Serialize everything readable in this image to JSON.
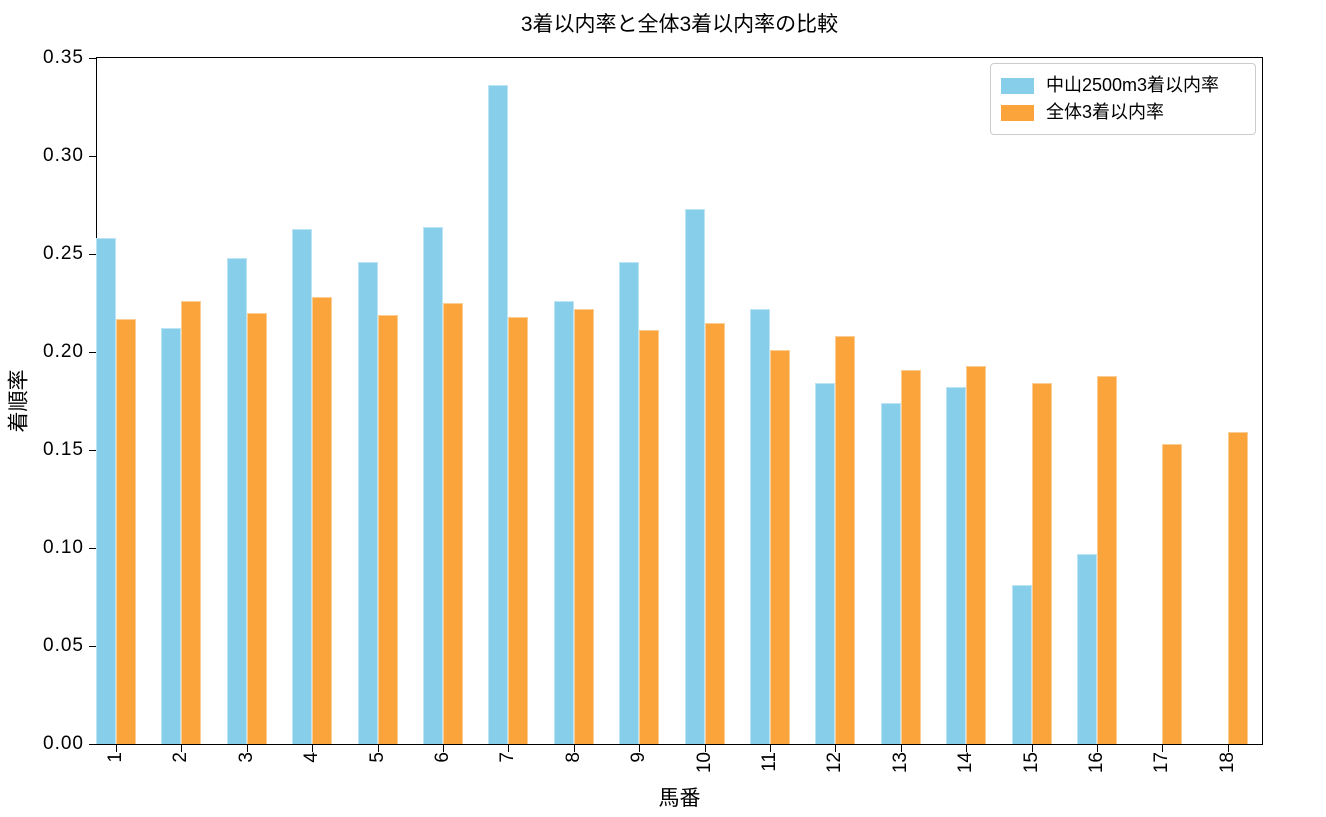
{
  "chart_data": {
    "type": "bar",
    "title": "3着以内率と全体3着以内率の比較",
    "xlabel": "馬番",
    "ylabel": "着順率",
    "categories": [
      "1",
      "2",
      "3",
      "4",
      "5",
      "6",
      "7",
      "8",
      "9",
      "10",
      "11",
      "12",
      "13",
      "14",
      "15",
      "16",
      "17",
      "18"
    ],
    "series": [
      {
        "name": "中山2500m3着以内率",
        "color": "#87CEEB",
        "values": [
          0.258,
          0.212,
          0.248,
          0.263,
          0.246,
          0.264,
          0.336,
          0.226,
          0.246,
          0.273,
          0.222,
          0.184,
          0.174,
          0.182,
          0.081,
          0.097,
          0.0,
          0.0
        ]
      },
      {
        "name": "全体3着以内率",
        "color": "#FAA43B",
        "values": [
          0.217,
          0.226,
          0.22,
          0.228,
          0.219,
          0.225,
          0.218,
          0.222,
          0.211,
          0.215,
          0.201,
          0.208,
          0.191,
          0.193,
          0.184,
          0.188,
          0.153,
          0.159
        ]
      }
    ],
    "ylim": [
      0,
      0.35
    ],
    "yticks": [
      "0.00",
      "0.05",
      "0.10",
      "0.15",
      "0.20",
      "0.25",
      "0.30",
      "0.35"
    ],
    "xticks_rotation_deg": 90,
    "legend_position": "upper right",
    "grid": false,
    "axis_color": "#000000",
    "background_color": "#ffffff"
  }
}
